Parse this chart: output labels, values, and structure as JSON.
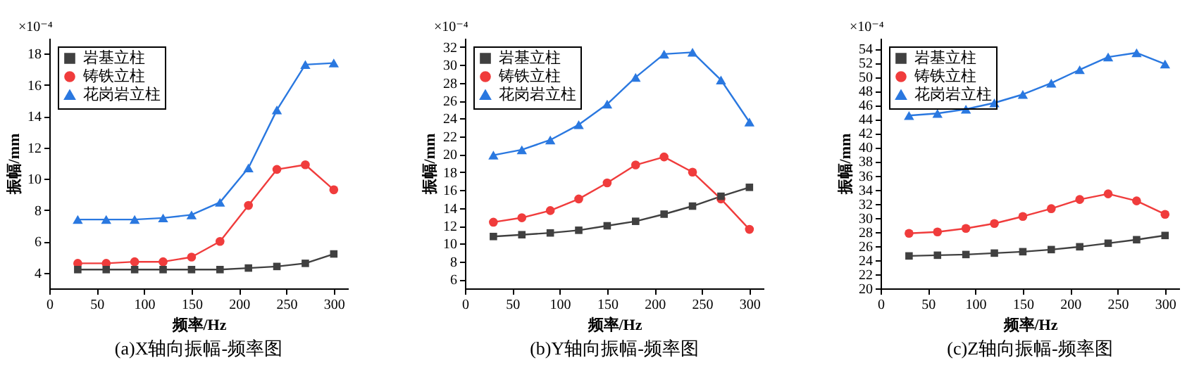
{
  "chart_data": [
    {
      "type": "line",
      "title": "(a)X轴向振幅-频率图",
      "xlabel": "频率/Hz",
      "ylabel": "振幅/mm",
      "annotations": [
        "×10⁻⁴"
      ],
      "x": [
        30,
        60,
        90,
        120,
        150,
        180,
        210,
        240,
        270,
        300
      ],
      "xlim": [
        0,
        315
      ],
      "xticks": [
        0,
        50,
        100,
        150,
        200,
        250,
        300
      ],
      "ylim": [
        3,
        19
      ],
      "yticks": [
        4,
        6,
        8,
        10,
        12,
        14,
        16,
        18
      ],
      "grid": false,
      "legend": "top left",
      "series": [
        {
          "name": "岩基立柱",
          "color": "#404040",
          "marker": "square",
          "values": [
            4.2,
            4.2,
            4.2,
            4.2,
            4.2,
            4.2,
            4.3,
            4.4,
            4.6,
            5.2
          ]
        },
        {
          "name": "铸铁立柱",
          "color": "#f03c3c",
          "marker": "circle",
          "values": [
            4.6,
            4.6,
            4.7,
            4.7,
            5.0,
            6.0,
            8.3,
            10.6,
            10.9,
            9.3
          ]
        },
        {
          "name": "花岗岩立柱",
          "color": "#2a78e0",
          "marker": "triangle",
          "values": [
            7.4,
            7.4,
            7.4,
            7.5,
            7.7,
            8.5,
            10.7,
            14.4,
            17.3,
            17.4
          ]
        }
      ]
    },
    {
      "type": "line",
      "title": "(b)Y轴向振幅-频率图",
      "xlabel": "频率/Hz",
      "ylabel": "振幅/mm",
      "annotations": [
        "×10⁻⁴"
      ],
      "x": [
        30,
        60,
        90,
        120,
        150,
        180,
        210,
        240,
        270,
        300
      ],
      "xlim": [
        0,
        315
      ],
      "xticks": [
        0,
        50,
        100,
        150,
        200,
        250,
        300
      ],
      "ylim": [
        5,
        33
      ],
      "yticks": [
        6,
        8,
        10,
        12,
        14,
        16,
        18,
        20,
        22,
        24,
        26,
        28,
        30,
        32
      ],
      "grid": false,
      "legend": "top left",
      "series": [
        {
          "name": "岩基立柱",
          "color": "#404040",
          "marker": "square",
          "values": [
            10.8,
            11.0,
            11.2,
            11.5,
            12.0,
            12.5,
            13.3,
            14.2,
            15.3,
            16.3
          ]
        },
        {
          "name": "铸铁立柱",
          "color": "#f03c3c",
          "marker": "circle",
          "values": [
            12.4,
            12.9,
            13.7,
            15.0,
            16.8,
            18.8,
            19.7,
            18.0,
            15.0,
            11.6
          ]
        },
        {
          "name": "花岗岩立柱",
          "color": "#2a78e0",
          "marker": "triangle",
          "values": [
            19.9,
            20.5,
            21.6,
            23.3,
            25.6,
            28.6,
            31.2,
            31.4,
            28.3,
            23.6
          ]
        }
      ]
    },
    {
      "type": "line",
      "title": "(c)Z轴向振幅-频率图",
      "xlabel": "频率/Hz",
      "ylabel": "振幅/mm",
      "annotations": [
        "×10⁻⁴"
      ],
      "x": [
        30,
        60,
        90,
        120,
        150,
        180,
        210,
        240,
        270,
        300
      ],
      "xlim": [
        0,
        315
      ],
      "xticks": [
        0,
        50,
        100,
        150,
        200,
        250,
        300
      ],
      "ylim": [
        20,
        55.5
      ],
      "yticks": [
        20,
        22,
        24,
        26,
        28,
        30,
        32,
        34,
        36,
        38,
        40,
        42,
        44,
        46,
        48,
        50,
        52,
        54
      ],
      "grid": false,
      "legend": "top left",
      "series": [
        {
          "name": "岩基立柱",
          "color": "#404040",
          "marker": "square",
          "values": [
            24.6,
            24.7,
            24.8,
            25.0,
            25.2,
            25.5,
            25.9,
            26.4,
            26.9,
            27.5
          ]
        },
        {
          "name": "铸铁立柱",
          "color": "#f03c3c",
          "marker": "circle",
          "values": [
            27.8,
            28.0,
            28.5,
            29.2,
            30.2,
            31.3,
            32.6,
            33.4,
            32.4,
            30.5
          ]
        },
        {
          "name": "花岗岩立柱",
          "color": "#2a78e0",
          "marker": "triangle",
          "values": [
            44.5,
            44.8,
            45.4,
            46.3,
            47.5,
            49.1,
            51.0,
            52.8,
            53.4,
            51.8
          ]
        }
      ]
    }
  ]
}
